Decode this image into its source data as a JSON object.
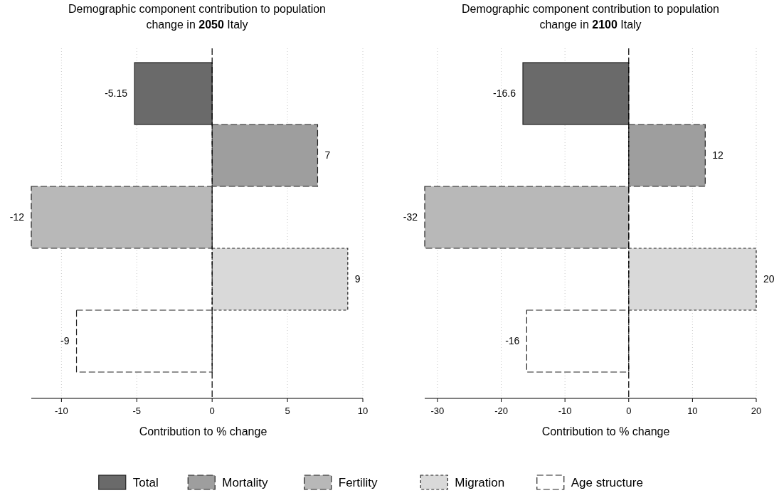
{
  "chart_data": [
    {
      "type": "bar",
      "orientation": "horizontal",
      "title": "Demographic component contribution to population change in 2050 Italy",
      "xlabel": "Contribution to % change",
      "categories": [
        null,
        null,
        null,
        null,
        null
      ],
      "series": [
        {
          "name": "Total",
          "color": "#6a6a6a",
          "line_style": "solid",
          "values": [
            -5.15,
            null,
            null,
            null,
            null
          ]
        },
        {
          "name": "Mortality",
          "color": "#9e9e9e",
          "line_style": "dashed",
          "values": [
            null,
            7,
            null,
            null,
            null
          ]
        },
        {
          "name": "Fertility",
          "color": "#b8b8b8",
          "line_style": "dashed",
          "values": [
            null,
            null,
            -12,
            null,
            null
          ]
        },
        {
          "name": "Migration",
          "color": "#d9d9d9",
          "line_style": "dotted",
          "values": [
            null,
            null,
            null,
            9,
            null
          ]
        },
        {
          "name": "Age structure",
          "color": "#ffffff",
          "line_style": "dashed",
          "values": [
            null,
            null,
            null,
            null,
            -9
          ]
        }
      ],
      "xlim": [
        -12,
        10
      ],
      "xticks": [
        -10,
        -5,
        0,
        5,
        10
      ],
      "grid": "x",
      "data_labels": true,
      "legend": "bottom",
      "ref_lines": [
        {
          "axis": "x",
          "value": 0,
          "line_style": "dashed",
          "color": "#000000"
        }
      ]
    },
    {
      "type": "bar",
      "orientation": "horizontal",
      "title": "Demographic component contribution to population change in 2100 Italy",
      "xlabel": "Contribution to % change",
      "categories": [
        null,
        null,
        null,
        null,
        null
      ],
      "series": [
        {
          "name": "Total",
          "color": "#6a6a6a",
          "line_style": "solid",
          "values": [
            -16.6,
            null,
            null,
            null,
            null
          ]
        },
        {
          "name": "Mortality",
          "color": "#9e9e9e",
          "line_style": "dashed",
          "values": [
            null,
            12,
            null,
            null,
            null
          ]
        },
        {
          "name": "Fertility",
          "color": "#b8b8b8",
          "line_style": "dashed",
          "values": [
            null,
            null,
            -32,
            null,
            null
          ]
        },
        {
          "name": "Migration",
          "color": "#d9d9d9",
          "line_style": "dotted",
          "values": [
            null,
            null,
            null,
            20,
            null
          ]
        },
        {
          "name": "Age structure",
          "color": "#ffffff",
          "line_style": "dashed",
          "values": [
            null,
            null,
            null,
            null,
            -16
          ]
        }
      ],
      "xlim": [
        -32,
        20
      ],
      "xticks": [
        -30,
        -20,
        -10,
        0,
        10,
        20
      ],
      "grid": "x",
      "data_labels": true,
      "ref_lines": [
        {
          "axis": "x",
          "value": 0,
          "line_style": "dashed",
          "color": "#000000"
        }
      ]
    }
  ]
}
